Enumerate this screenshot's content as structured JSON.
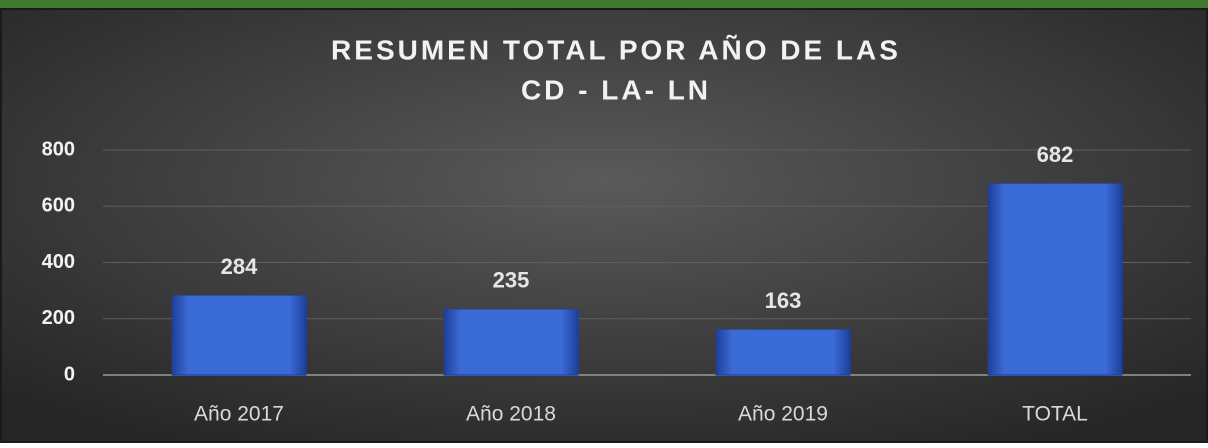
{
  "chart_data": {
    "type": "bar",
    "title": [
      "RESUMEN TOTAL POR AÑO DE LAS",
      "CD - LA- LN"
    ],
    "categories": [
      "Año 2017",
      "Año 2018",
      "Año 2019",
      "TOTAL"
    ],
    "values": [
      284,
      235,
      163,
      682
    ],
    "color": "#3a6ad6",
    "ylim": [
      0,
      800
    ],
    "yticks": [
      0,
      200,
      400,
      600,
      800
    ],
    "grid": true
  }
}
